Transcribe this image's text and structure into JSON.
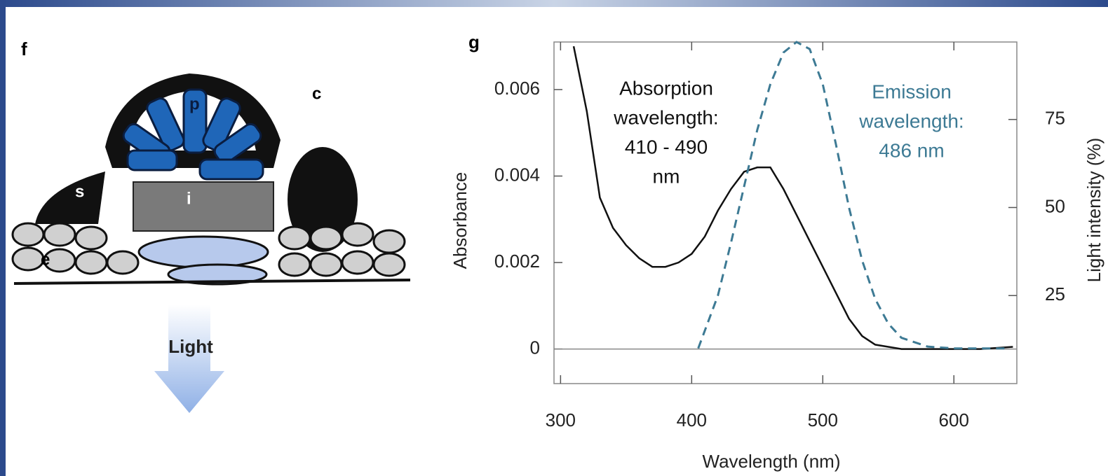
{
  "diagram": {
    "panel_label": "f",
    "labels": {
      "p": "p",
      "c": "c",
      "s": "s",
      "i": "i",
      "e": "e"
    },
    "arrow_label": "Light"
  },
  "chart_data": {
    "type": "line",
    "panel_label": "g",
    "x_label": "Wavelength (nm)",
    "y_label": "Absorbance",
    "y2_label": "Light intensity (%)",
    "xlim": [
      295,
      648
    ],
    "xticks": [
      300,
      400,
      500,
      600
    ],
    "ylim": [
      -0.0008,
      0.0071
    ],
    "yticks": [
      0,
      0.002,
      0.004,
      0.006
    ],
    "y2lim": [
      0,
      97
    ],
    "y2ticks": [
      25,
      50,
      75
    ],
    "series": [
      {
        "color": "#111111",
        "dash": false,
        "x": [
          310,
          320,
          330,
          340,
          350,
          360,
          370,
          380,
          390,
          400,
          410,
          420,
          430,
          440,
          450,
          460,
          470,
          480,
          490,
          500,
          510,
          520,
          530,
          540,
          550,
          560,
          580,
          600,
          620,
          645
        ],
        "values": [
          0.007,
          0.0055,
          0.0035,
          0.0028,
          0.0024,
          0.0021,
          0.0019,
          0.0019,
          0.002,
          0.0022,
          0.0026,
          0.0032,
          0.0037,
          0.0041,
          0.0042,
          0.0042,
          0.0037,
          0.0031,
          0.0025,
          0.0019,
          0.0013,
          0.0007,
          0.0003,
          0.0001,
          5e-05,
          0,
          0,
          0,
          0,
          5e-05
        ]
      },
      {
        "color": "#3d7a94",
        "dash": true,
        "axis": "y2",
        "x": [
          405,
          420,
          430,
          440,
          450,
          460,
          470,
          480,
          490,
          500,
          510,
          520,
          530,
          540,
          550,
          560,
          580,
          600,
          620,
          640
        ],
        "values": [
          10,
          25,
          40,
          56,
          72,
          85,
          94,
          97,
          95,
          85,
          68,
          50,
          35,
          24,
          17,
          13,
          10.5,
          10,
          10,
          10
        ]
      }
    ],
    "annotations": [
      {
        "lines": [
          "Absorption",
          "wavelength:",
          "410 - 490",
          "nm"
        ],
        "color": "#111111"
      },
      {
        "lines": [
          "Emission",
          "wavelength:",
          "486 nm"
        ],
        "color": "#3d7a94"
      }
    ]
  }
}
